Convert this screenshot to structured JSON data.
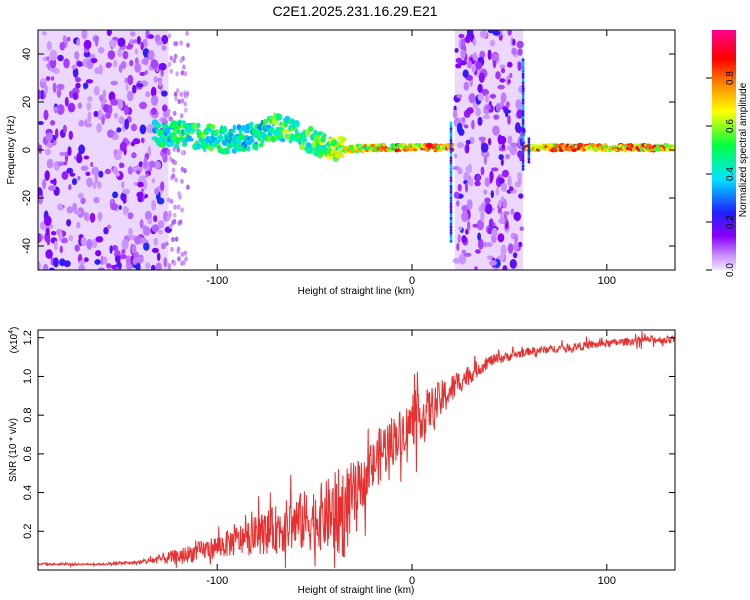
{
  "title": "C2E1.2025.231.16.29.E21",
  "spectrogram": {
    "xlabel": "Height of straight line (km)",
    "ylabel": "Frequency (Hz)",
    "x_ticks": [
      -100,
      0,
      100
    ],
    "y_ticks": [
      -40,
      -20,
      0,
      20,
      40
    ],
    "xlim": [
      -192,
      135
    ],
    "ylim": [
      -50,
      50
    ],
    "colorbar": {
      "label": "Normalized spectral amplitude",
      "ticks": [
        "0.0",
        "0.2",
        "0.4",
        "0.6",
        "0.8"
      ],
      "range": [
        0,
        1
      ],
      "colors": [
        "#f4e6ff",
        "#8b00ff",
        "#2020ff",
        "#00e5ff",
        "#00ff40",
        "#ffff00",
        "#ff8000",
        "#ff0000",
        "#ff0090"
      ]
    }
  },
  "chart_data": [
    {
      "type": "heatmap",
      "title": "C2E1.2025.231.16.29.E21",
      "xlabel": "Height of straight line (km)",
      "ylabel": "Frequency (Hz)",
      "xlim": [
        -192,
        135
      ],
      "ylim": [
        -50,
        50
      ],
      "colorbar_label": "Normalized spectral amplitude",
      "colorbar_range": [
        0,
        1
      ],
      "features": {
        "noise_regions_km": [
          [
            -192,
            -125
          ],
          [
            22,
            57
          ]
        ],
        "ridge": [
          {
            "x": -130,
            "y": 7,
            "amp": 0.55
          },
          {
            "x": -110,
            "y": 6,
            "amp": 0.6
          },
          {
            "x": -95,
            "y": 4,
            "amp": 0.55
          },
          {
            "x": -80,
            "y": 6,
            "amp": 0.5
          },
          {
            "x": -70,
            "y": 10,
            "amp": 0.65
          },
          {
            "x": -55,
            "y": 5,
            "amp": 0.6
          },
          {
            "x": -40,
            "y": 0,
            "amp": 0.7
          },
          {
            "x": -20,
            "y": 1,
            "amp": 0.85
          },
          {
            "x": 0,
            "y": 1,
            "amp": 0.95
          },
          {
            "x": 15,
            "y": 1,
            "amp": 0.95
          },
          {
            "x": 60,
            "y": 1,
            "amp": 0.9
          },
          {
            "x": 80,
            "y": 1,
            "amp": 0.97
          },
          {
            "x": 100,
            "y": 1,
            "amp": 0.97
          },
          {
            "x": 135,
            "y": 1,
            "amp": 0.95
          }
        ]
      }
    },
    {
      "type": "line",
      "xlabel": "Height of straight line (km)",
      "ylabel": "SNR (10 * v/v)",
      "y_multiplier": "(x10⁴)",
      "xlim": [
        -192,
        135
      ],
      "ylim": [
        0,
        1.24
      ],
      "x_ticks": [
        -100,
        0,
        100
      ],
      "y_ticks": [
        0.2,
        0.4,
        0.6,
        0.8,
        1.0,
        1.2
      ],
      "series": [
        {
          "color": "#e83030",
          "x": [
            -192,
            -160,
            -140,
            -120,
            -100,
            -80,
            -60,
            -45,
            -35,
            -25,
            -15,
            -5,
            5,
            15,
            25,
            40,
            60,
            80,
            100,
            120,
            135
          ],
          "y": [
            0.03,
            0.03,
            0.04,
            0.07,
            0.12,
            0.18,
            0.24,
            0.28,
            0.3,
            0.45,
            0.62,
            0.72,
            0.8,
            0.88,
            0.98,
            1.08,
            1.13,
            1.15,
            1.17,
            1.19,
            1.19
          ],
          "noise_amplitude": [
            0.005,
            0.005,
            0.01,
            0.04,
            0.06,
            0.1,
            0.15,
            0.18,
            0.25,
            0.12,
            0.15,
            0.12,
            0.12,
            0.1,
            0.06,
            0.03,
            0.02,
            0.02,
            0.02,
            0.02,
            0.02
          ]
        }
      ]
    }
  ],
  "snr": {
    "xlabel": "Height of straight line (km)",
    "ylabel": "SNR (10 * v/v)",
    "multiplier": "(x10",
    "multiplier_exp": "4",
    "x_ticks": [
      "-100",
      "0",
      "100"
    ],
    "y_ticks": [
      "0.2",
      "0.4",
      "0.6",
      "0.8",
      "1.0",
      "1.2"
    ]
  }
}
